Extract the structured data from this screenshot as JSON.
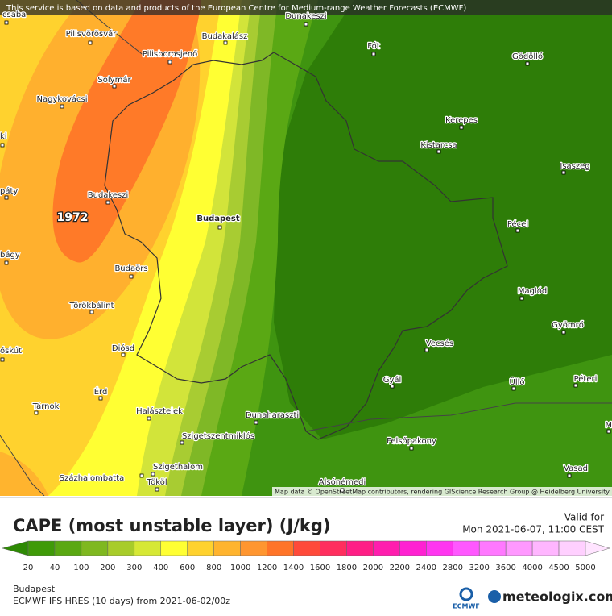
{
  "banner": "This service is based on data and products of the European Centre for Medium-range Weather Forecasts (ECMWF)",
  "attribution": "Map data © OpenStreetMap contributors, rendering GIScience Research Group @ Heidelberg University",
  "places": [
    "csaba",
    "Pilisvörösvár",
    "Budakalász",
    "Dunakeszi",
    "Fót",
    "Gödöllő",
    "Pilisborosjenő",
    "Solymár",
    "Nagykovácsi",
    "Kerepes",
    "Kistarcsa",
    "ki",
    "Isaszeg",
    "páty",
    "Budakeszi",
    "Budapest",
    "Pécel",
    "bágy",
    "Budaörs",
    "Maglód",
    "Törökbálint",
    "Gyömrő",
    "Vecsés",
    "Diósd",
    "óskút",
    "Gyál",
    "Üllő",
    "Péteri",
    "Érd",
    "Tárnok",
    "Halásztelek",
    "Dunaharaszti",
    "M",
    "Szigetszentmiklós",
    "Felsőpakony",
    "Szigethalom",
    "Vasad",
    "Százhalombatta",
    "Tököl",
    "Alsónémedi"
  ],
  "max_value": 1972,
  "legend": {
    "title": "CAPE (most unstable layer) (J/kg)",
    "ticks": [
      20,
      40,
      100,
      200,
      300,
      400,
      600,
      800,
      1000,
      1200,
      1400,
      1600,
      1800,
      2000,
      2200,
      2400,
      2800,
      3200,
      3600,
      4000,
      4500,
      5000
    ],
    "colors": [
      "#2e8a04",
      "#3f9a08",
      "#5aa812",
      "#7fb820",
      "#a8cc2a",
      "#d6e835",
      "#ffff33",
      "#ffd22e",
      "#ffb42e",
      "#ff9630",
      "#ff7428",
      "#ff4a3a",
      "#ff2e5e",
      "#ff1e86",
      "#ff1eae",
      "#ff22d2",
      "#ff36f0",
      "#ff58ff",
      "#ff78ff",
      "#ff98ff",
      "#ffb6ff",
      "#ffd0ff",
      "#ffe4ff"
    ]
  },
  "valid_label": "Valid for",
  "valid_time": "Mon 2021-06-07, 11:00 CEST",
  "location": "Budapest",
  "model": "ECMWF IFS HRES (10 days) from 2021-06-02/00z",
  "ecmwf_logo": "ECMWF",
  "brand": "meteologix.com"
}
